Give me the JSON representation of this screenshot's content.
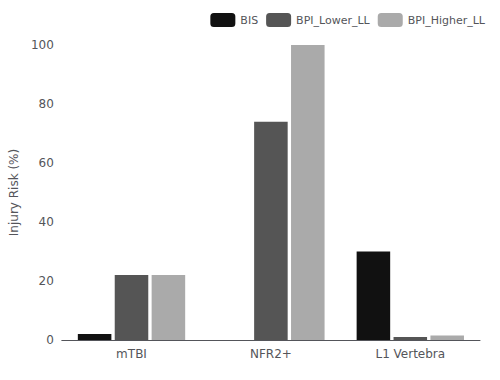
{
  "chart_data": {
    "type": "bar",
    "categories": [
      "mTBI",
      "NFR2+",
      "L1 Vertebra"
    ],
    "series": [
      {
        "name": "BIS",
        "color": "#111111",
        "values": [
          2,
          0,
          30
        ]
      },
      {
        "name": "BPI_Lower_LL",
        "color": "#555555",
        "values": [
          22,
          74,
          1
        ]
      },
      {
        "name": "BPI_Higher_LL",
        "color": "#aaaaaa",
        "values": [
          22,
          100,
          1.5
        ]
      }
    ],
    "ylabel": "Injury Risk (%)",
    "ylim": [
      0,
      100
    ],
    "yticks": [
      0,
      20,
      40,
      60,
      80,
      100
    ],
    "grid": false,
    "legend": "upper right"
  }
}
